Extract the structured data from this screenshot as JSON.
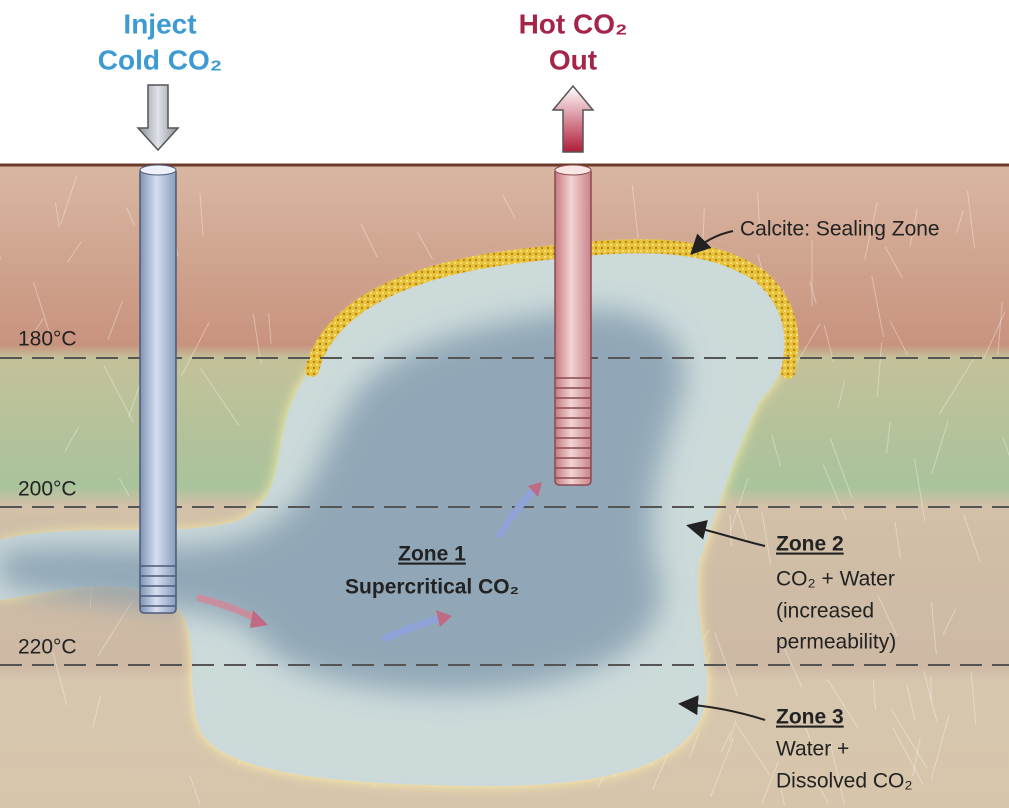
{
  "injection": {
    "lines": [
      "Inject",
      "Cold CO₂"
    ]
  },
  "production": {
    "lines": [
      "Hot CO₂",
      "Out"
    ]
  },
  "calcite_label": "Calcite: Sealing Zone",
  "temperatures": [
    "180°C",
    "200°C",
    "220°C"
  ],
  "zones": [
    {
      "title": "Zone 1",
      "lines": [
        "Supercritical CO₂"
      ]
    },
    {
      "title": "Zone 2",
      "lines": [
        "CO₂ + Water",
        "(increased",
        "permeability)"
      ]
    },
    {
      "title": "Zone 3",
      "lines": [
        "Water +",
        "Dissolved CO₂"
      ]
    }
  ]
}
